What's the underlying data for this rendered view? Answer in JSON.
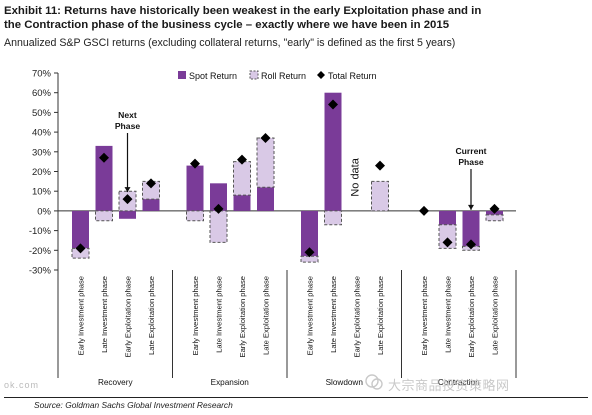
{
  "header": {
    "title_line1": "Exhibit 11: Returns have historically been weakest in the early Exploitation phase and in",
    "title_line2": "the Contraction phase of the business cycle – exactly where we have been in 2015",
    "subtitle": "Annualized S&P GSCI returns (excluding collateral returns, \"early\" is defined as the first 5 years)"
  },
  "footer": {
    "source": "Source: Goldman Sachs Global Investment Research",
    "watermark": "大宗商品投资策略网",
    "watermark_left": "ok.com"
  },
  "colors": {
    "spot": "#7a3b98",
    "roll": "#d9c9e6",
    "roll_border": "#555555",
    "total": "#000000"
  },
  "chart_data": {
    "type": "bar",
    "ylim": [
      -30,
      70
    ],
    "yticks": [
      "70%",
      "60%",
      "50%",
      "40%",
      "30%",
      "20%",
      "10%",
      "0%",
      "-10%",
      "-20%",
      "-30%"
    ],
    "legend": [
      "Spot Return",
      "Roll Return",
      "Total Return"
    ],
    "categories": [
      "Early Investment phase",
      "Late Investment phase",
      "Early Exploitation phase",
      "Late Exploitation phase",
      "Early Investment phase",
      "Late Investment phase",
      "Early Exploitation phase",
      "Late Exploitation phase",
      "Early Investment phase",
      "Late Investment phase",
      "Early Exploitation phase",
      "Late Exploitation phase",
      "Early Investment phase",
      "Late Investment phase",
      "Early Exploitation phase",
      "Late Exploitation phase"
    ],
    "groups": [
      "Recovery",
      "Expansion",
      "Slowdown",
      "Contraction"
    ],
    "series": [
      {
        "name": "Spot Return",
        "values": [
          -19,
          33,
          -4,
          6,
          23,
          14,
          8,
          12,
          -23,
          60,
          null,
          0,
          0,
          -7,
          -18,
          -2
        ]
      },
      {
        "name": "Roll Return",
        "values": [
          -5,
          -5,
          10,
          9,
          -5,
          -16,
          17,
          25,
          -3,
          -7,
          null,
          15,
          0,
          -12,
          -2,
          -3
        ]
      },
      {
        "name": "Total Return",
        "values": [
          -19,
          27,
          6,
          14,
          24,
          1,
          26,
          37,
          -21,
          54,
          null,
          23,
          0,
          -16,
          -17,
          1
        ]
      }
    ],
    "annotations": [
      {
        "text_line1": "Next",
        "text_line2": "Phase",
        "category_index": 2
      },
      {
        "text_line1": "Current",
        "text_line2": "Phase",
        "category_index": 14
      },
      {
        "text": "No data",
        "category_index": 10
      }
    ]
  }
}
